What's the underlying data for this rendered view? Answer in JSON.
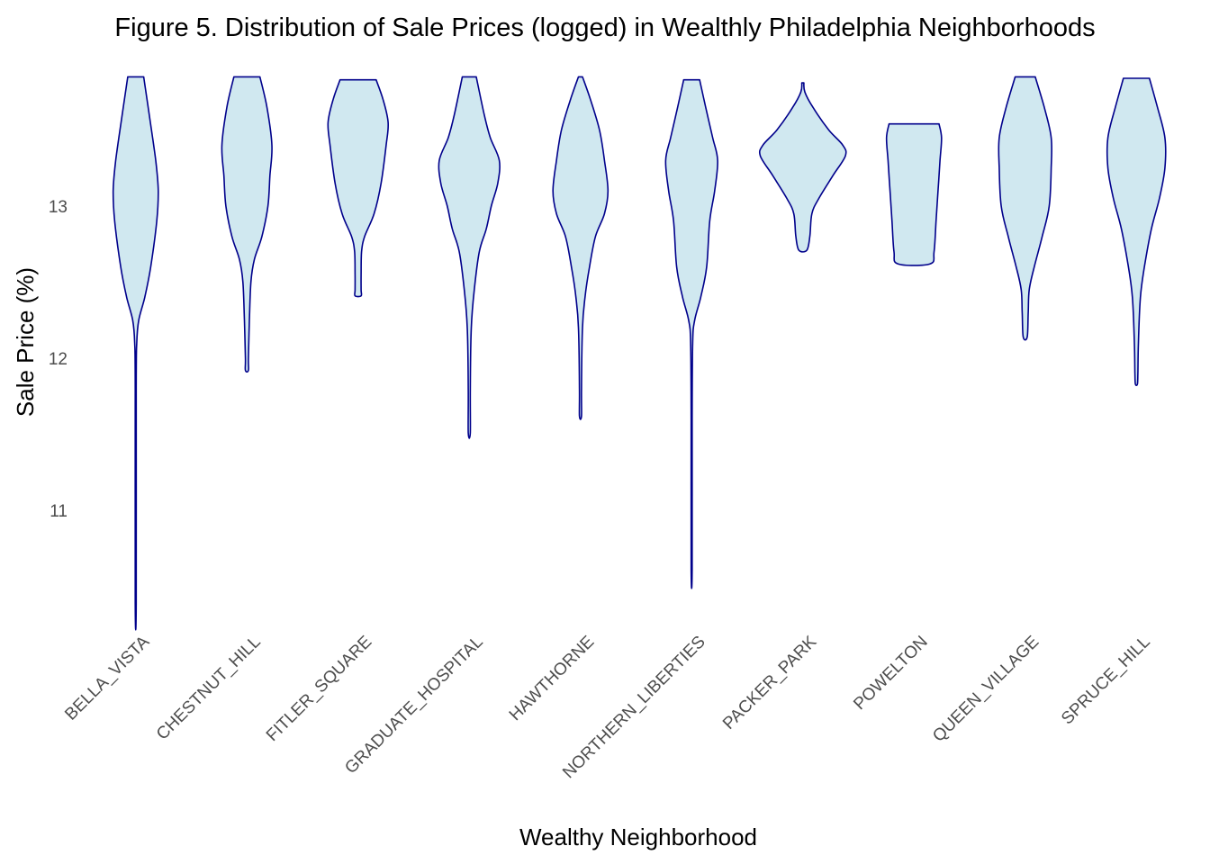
{
  "chart_data": {
    "type": "violin",
    "title": "Figure 5. Distribution of Sale Prices (logged) in Wealthly Philadelphia Neighborhoods",
    "xlabel": "Wealthy Neighborhood",
    "ylabel": "Sale Price (%)",
    "y_ticks": [
      11,
      12,
      13
    ],
    "ylim": [
      10.3,
      13.9
    ],
    "grid": false,
    "fill_color": "#d0e8f0",
    "stroke_color": "#00008b",
    "categories": [
      "BELLA_VISTA",
      "CHESTNUT_HILL",
      "FITLER_SQUARE",
      "GRADUATE_HOSPITAL",
      "HAWTHORNE",
      "NORTHERN_LIBERTIES",
      "PACKER_PARK",
      "POWELTON",
      "QUEEN_VILLAGE",
      "SPRUCE_HILL"
    ],
    "series": [
      {
        "name": "BELLA_VISTA",
        "min": 10.39,
        "max": 13.85,
        "density": [
          [
            13.85,
            0.16
          ],
          [
            13.6,
            0.27
          ],
          [
            13.3,
            0.4
          ],
          [
            13.1,
            0.45
          ],
          [
            12.9,
            0.42
          ],
          [
            12.6,
            0.3
          ],
          [
            12.4,
            0.18
          ],
          [
            12.25,
            0.06
          ],
          [
            12.1,
            0.02
          ],
          [
            11.8,
            0.01
          ],
          [
            10.39,
            0.01
          ]
        ]
      },
      {
        "name": "CHESTNUT_HILL",
        "min": 11.92,
        "max": 13.85,
        "density": [
          [
            13.85,
            0.26
          ],
          [
            13.65,
            0.4
          ],
          [
            13.4,
            0.5
          ],
          [
            13.2,
            0.46
          ],
          [
            13.0,
            0.42
          ],
          [
            12.8,
            0.3
          ],
          [
            12.65,
            0.15
          ],
          [
            12.5,
            0.08
          ],
          [
            12.25,
            0.05
          ],
          [
            12.0,
            0.03
          ],
          [
            11.92,
            0.03
          ]
        ]
      },
      {
        "name": "FITLER_SQUARE",
        "min": 12.41,
        "max": 13.83,
        "density": [
          [
            13.83,
            0.36
          ],
          [
            13.7,
            0.5
          ],
          [
            13.55,
            0.6
          ],
          [
            13.4,
            0.56
          ],
          [
            13.15,
            0.46
          ],
          [
            12.95,
            0.32
          ],
          [
            12.8,
            0.13
          ],
          [
            12.7,
            0.07
          ],
          [
            12.55,
            0.06
          ],
          [
            12.45,
            0.06
          ],
          [
            12.41,
            0.06
          ]
        ]
      },
      {
        "name": "GRADUATE_HOSPITAL",
        "min": 11.51,
        "max": 13.85,
        "density": [
          [
            13.85,
            0.14
          ],
          [
            13.6,
            0.3
          ],
          [
            13.45,
            0.42
          ],
          [
            13.3,
            0.6
          ],
          [
            13.15,
            0.57
          ],
          [
            13.0,
            0.44
          ],
          [
            12.85,
            0.34
          ],
          [
            12.7,
            0.2
          ],
          [
            12.45,
            0.1
          ],
          [
            12.2,
            0.04
          ],
          [
            11.8,
            0.02
          ],
          [
            11.51,
            0.02
          ]
        ]
      },
      {
        "name": "HAWTHORNE",
        "min": 11.62,
        "max": 13.85,
        "density": [
          [
            13.85,
            0.04
          ],
          [
            13.7,
            0.2
          ],
          [
            13.5,
            0.38
          ],
          [
            13.3,
            0.48
          ],
          [
            13.1,
            0.55
          ],
          [
            12.95,
            0.48
          ],
          [
            12.8,
            0.3
          ],
          [
            12.6,
            0.18
          ],
          [
            12.4,
            0.09
          ],
          [
            12.2,
            0.04
          ],
          [
            11.8,
            0.02
          ],
          [
            11.62,
            0.02
          ]
        ]
      },
      {
        "name": "NORTHERN_LIBERTIES",
        "min": 10.61,
        "max": 13.83,
        "density": [
          [
            13.83,
            0.16
          ],
          [
            13.65,
            0.28
          ],
          [
            13.45,
            0.42
          ],
          [
            13.3,
            0.52
          ],
          [
            13.1,
            0.46
          ],
          [
            12.9,
            0.36
          ],
          [
            12.6,
            0.3
          ],
          [
            12.4,
            0.18
          ],
          [
            12.25,
            0.06
          ],
          [
            12.1,
            0.02
          ],
          [
            11.6,
            0.01
          ],
          [
            10.61,
            0.01
          ]
        ]
      },
      {
        "name": "PACKER_PARK",
        "min": 12.71,
        "max": 13.81,
        "density": [
          [
            13.81,
            0.02
          ],
          [
            13.75,
            0.04
          ],
          [
            13.65,
            0.2
          ],
          [
            13.5,
            0.52
          ],
          [
            13.4,
            0.8
          ],
          [
            13.33,
            0.85
          ],
          [
            13.2,
            0.6
          ],
          [
            13.05,
            0.32
          ],
          [
            12.95,
            0.18
          ],
          [
            12.8,
            0.14
          ],
          [
            12.71,
            0.08
          ]
        ]
      },
      {
        "name": "POWELTON",
        "min": 12.62,
        "max": 13.54,
        "density": [
          [
            13.54,
            0.5
          ],
          [
            13.45,
            0.55
          ],
          [
            13.3,
            0.52
          ],
          [
            13.1,
            0.48
          ],
          [
            12.9,
            0.44
          ],
          [
            12.7,
            0.4
          ],
          [
            12.62,
            0.32
          ]
        ]
      },
      {
        "name": "QUEEN_VILLAGE",
        "min": 12.14,
        "max": 13.85,
        "density": [
          [
            13.85,
            0.2
          ],
          [
            13.65,
            0.38
          ],
          [
            13.45,
            0.52
          ],
          [
            13.25,
            0.52
          ],
          [
            13.0,
            0.48
          ],
          [
            12.8,
            0.34
          ],
          [
            12.6,
            0.18
          ],
          [
            12.45,
            0.08
          ],
          [
            12.3,
            0.06
          ],
          [
            12.14,
            0.04
          ]
        ]
      },
      {
        "name": "SPRUCE_HILL",
        "min": 11.83,
        "max": 13.84,
        "density": [
          [
            13.84,
            0.26
          ],
          [
            13.65,
            0.42
          ],
          [
            13.45,
            0.57
          ],
          [
            13.25,
            0.57
          ],
          [
            13.05,
            0.46
          ],
          [
            12.85,
            0.3
          ],
          [
            12.6,
            0.16
          ],
          [
            12.4,
            0.08
          ],
          [
            12.1,
            0.04
          ],
          [
            11.9,
            0.03
          ],
          [
            11.83,
            0.02
          ]
        ]
      }
    ]
  }
}
